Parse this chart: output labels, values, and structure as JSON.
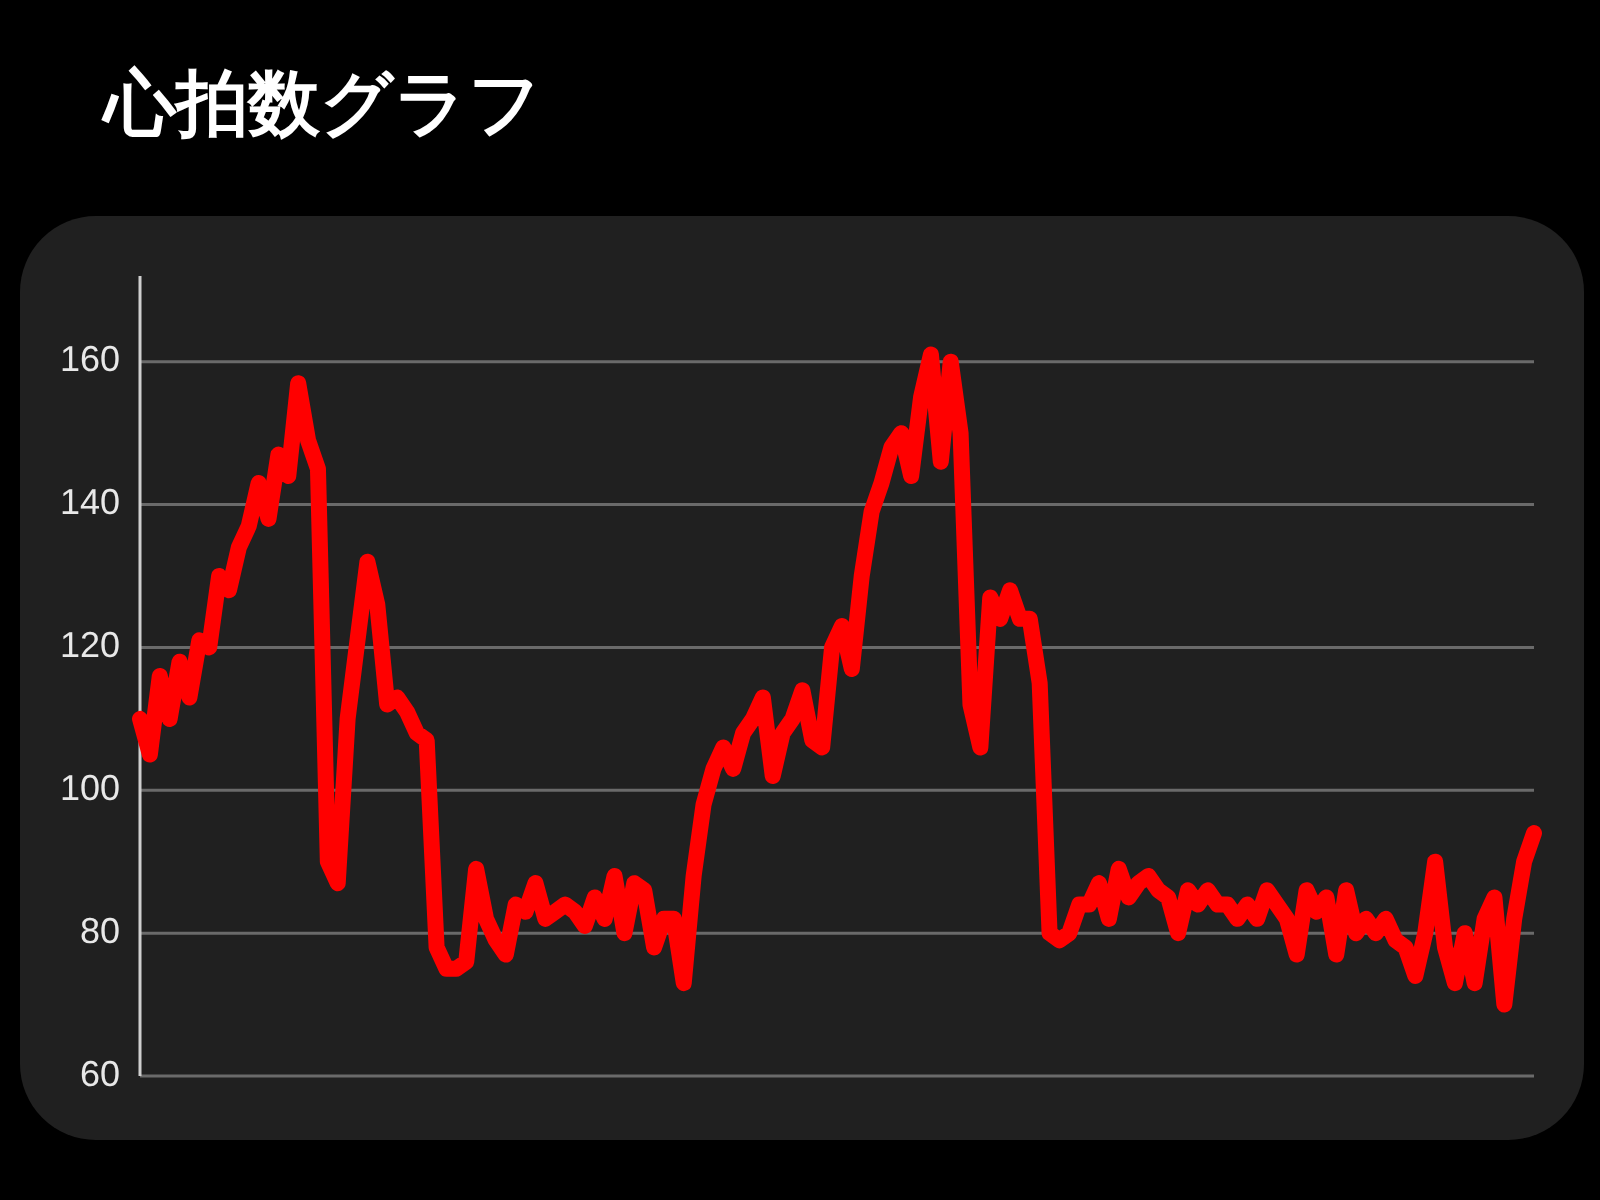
{
  "chart_data": {
    "type": "line",
    "title": "心拍数グラフ",
    "categories": [
      null,
      null,
      null,
      null,
      null,
      null,
      null,
      null,
      null,
      null,
      null,
      null,
      null,
      null,
      null,
      null,
      null,
      null,
      null,
      null,
      null,
      null,
      null,
      null,
      null,
      null,
      null,
      null,
      null,
      null,
      null,
      null,
      null,
      null,
      null,
      null,
      null,
      null,
      null,
      null,
      null,
      null,
      null,
      null,
      null,
      null,
      null,
      null,
      null,
      null,
      null,
      null,
      null,
      null,
      null,
      null,
      null,
      null,
      null,
      null,
      null,
      null,
      null,
      null,
      null,
      null,
      null,
      null,
      null,
      null,
      null,
      null,
      null,
      null,
      null,
      null,
      null,
      null,
      null,
      null,
      null,
      null,
      null,
      null,
      null,
      null,
      null,
      null,
      null,
      null,
      null,
      null,
      null,
      null,
      null,
      null,
      null,
      null,
      null,
      null,
      null,
      null,
      null,
      null,
      null,
      null,
      null,
      null,
      null,
      null,
      null,
      null,
      null,
      null,
      null,
      null,
      null,
      null,
      null,
      null,
      null,
      null,
      null,
      null,
      null,
      null,
      null,
      null,
      null,
      null,
      null,
      null,
      null,
      null,
      null,
      null,
      null,
      null,
      null,
      null,
      null,
      null
    ],
    "series": [
      {
        "color": "#ff0000",
        "values": [
          110,
          105,
          116,
          110,
          118,
          113,
          121,
          120,
          130,
          128,
          134,
          137,
          143,
          138,
          147,
          144,
          157,
          149,
          145,
          90,
          87,
          110,
          121,
          132,
          126,
          112,
          113,
          111,
          108,
          107,
          78,
          75,
          75,
          76,
          89,
          82,
          79,
          77,
          84,
          83,
          87,
          82,
          83,
          84,
          83,
          81,
          85,
          82,
          88,
          80,
          87,
          86,
          78,
          82,
          82,
          73,
          88,
          98,
          103,
          106,
          103,
          108,
          110,
          113,
          102,
          108,
          110,
          114,
          107,
          106,
          120,
          123,
          117,
          130,
          139,
          143,
          148,
          150,
          144,
          155,
          161,
          146,
          160,
          150,
          112,
          106,
          127,
          124,
          128,
          124,
          124,
          115,
          80,
          79,
          80,
          84,
          84,
          87,
          82,
          89,
          85,
          87,
          88,
          86,
          85,
          80,
          86,
          84,
          86,
          84,
          84,
          82,
          84,
          82,
          86,
          84,
          82,
          77,
          86,
          83,
          85,
          77,
          86,
          80,
          82,
          80,
          82,
          79,
          78,
          74,
          80,
          90,
          78,
          73,
          80,
          73,
          82,
          85,
          70,
          82,
          90,
          94
        ]
      }
    ],
    "ylim": [
      60,
      172
    ],
    "yticks": [
      60,
      80,
      100,
      120,
      140,
      160
    ],
    "grid": "y",
    "tick_labels": "y",
    "line_style": "solid"
  }
}
